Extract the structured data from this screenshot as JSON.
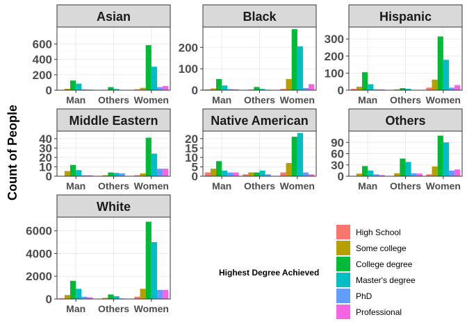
{
  "chart_data": {
    "type": "bar",
    "ylabel": "Count of People",
    "categories": [
      "Man",
      "Others",
      "Women"
    ],
    "legend": {
      "title": "Highest Degree Achieved",
      "placement": "bottom-right",
      "entries": [
        {
          "name": "High School",
          "color": "#F8766D"
        },
        {
          "name": "Some college",
          "color": "#B79F00"
        },
        {
          "name": "College degree",
          "color": "#00BA38"
        },
        {
          "name": "Master's degree",
          "color": "#00BFC4"
        },
        {
          "name": "PhD",
          "color": "#619CFF"
        },
        {
          "name": "Professional",
          "color": "#F564E3"
        }
      ]
    },
    "grid": true,
    "panels": [
      {
        "title": "Asian",
        "ylim": [
          0,
          820
        ],
        "yticks": [
          0,
          200,
          400,
          600
        ],
        "values": {
          "Man": [
            5,
            18,
            125,
            85,
            10,
            8
          ],
          "Others": [
            2,
            5,
            40,
            15,
            3,
            2
          ],
          "Women": [
            12,
            30,
            585,
            305,
            40,
            55
          ]
        }
      },
      {
        "title": "Black",
        "ylim": [
          0,
          295
        ],
        "yticks": [
          0,
          100,
          200
        ],
        "values": {
          "Man": [
            4,
            8,
            52,
            22,
            5,
            4
          ],
          "Others": [
            1,
            3,
            15,
            6,
            2,
            1
          ],
          "Women": [
            6,
            52,
            285,
            205,
            10,
            28
          ]
        }
      },
      {
        "title": "Hispanic",
        "ylim": [
          0,
          370
        ],
        "yticks": [
          0,
          100,
          200,
          300
        ],
        "values": {
          "Man": [
            8,
            20,
            105,
            35,
            5,
            5
          ],
          "Others": [
            2,
            5,
            12,
            8,
            2,
            1
          ],
          "Women": [
            15,
            62,
            315,
            178,
            15,
            30
          ]
        }
      },
      {
        "title": "Middle Eastern",
        "ylim": [
          0,
          48
        ],
        "yticks": [
          0,
          10,
          20,
          30,
          40
        ],
        "values": {
          "Man": [
            0,
            5.5,
            12,
            6.5,
            1,
            1
          ],
          "Others": [
            0,
            1,
            4,
            3.5,
            3,
            0
          ],
          "Women": [
            1,
            3,
            41,
            24,
            8,
            8
          ]
        }
      },
      {
        "title": "Native American",
        "ylim": [
          0,
          24
        ],
        "yticks": [
          0,
          5,
          10,
          15,
          20
        ],
        "values": {
          "Man": [
            2,
            4,
            8,
            3,
            2,
            2
          ],
          "Others": [
            1,
            2,
            2,
            3,
            1,
            0
          ],
          "Women": [
            2,
            7,
            21,
            23,
            2,
            1
          ]
        }
      },
      {
        "title": "Others",
        "ylim": [
          0,
          120
        ],
        "yticks": [
          0,
          30,
          60,
          90
        ],
        "values": {
          "Man": [
            0,
            7,
            27,
            15,
            5,
            3
          ],
          "Others": [
            0,
            8,
            47,
            38,
            8,
            7
          ],
          "Women": [
            5,
            26,
            108,
            90,
            15,
            18
          ]
        }
      },
      {
        "title": "White",
        "ylim": [
          0,
          7200
        ],
        "yticks": [
          0,
          2000,
          4000,
          6000
        ],
        "values": {
          "Man": [
            60,
            350,
            1600,
            900,
            200,
            150
          ],
          "Others": [
            30,
            100,
            400,
            250,
            50,
            20
          ],
          "Women": [
            200,
            900,
            6800,
            5000,
            800,
            800
          ]
        }
      }
    ]
  }
}
